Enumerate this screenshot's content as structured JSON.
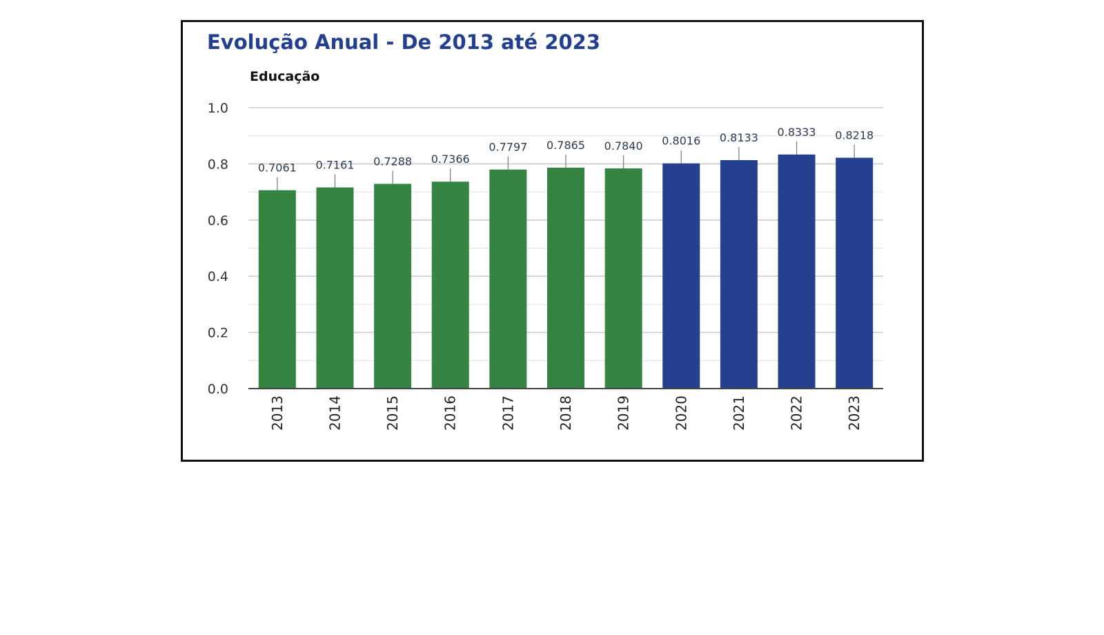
{
  "chart_data": {
    "type": "bar",
    "title": "Evolução Anual - De 2013 até 2023",
    "subtitle": "Educação",
    "xlabel": "",
    "ylabel": "",
    "ylim": [
      0,
      1.0
    ],
    "y_ticks": [
      "0.0",
      "0.2",
      "0.4",
      "0.6",
      "0.8",
      "1.0"
    ],
    "grid": true,
    "legend": "none",
    "categories": [
      "2013",
      "2014",
      "2015",
      "2016",
      "2017",
      "2018",
      "2019",
      "2020",
      "2021",
      "2022",
      "2023"
    ],
    "values": [
      0.7061,
      0.7161,
      0.7288,
      0.7366,
      0.7797,
      0.7865,
      0.784,
      0.8016,
      0.8133,
      0.8333,
      0.8218
    ],
    "value_labels": [
      "0.7061",
      "0.7161",
      "0.7288",
      "0.7366",
      "0.7797",
      "0.7865",
      "0.7840",
      "0.8016",
      "0.8133",
      "0.8333",
      "0.8218"
    ],
    "colors": {
      "title": "#233f8f",
      "bars_2013_2019": "#358441",
      "bars_2020_2023": "#25408f",
      "grid": "#cccccc",
      "axis": "#444444"
    },
    "bar_color_by_category": [
      "#358441",
      "#358441",
      "#358441",
      "#358441",
      "#358441",
      "#358441",
      "#358441",
      "#25408f",
      "#25408f",
      "#25408f",
      "#25408f"
    ]
  }
}
